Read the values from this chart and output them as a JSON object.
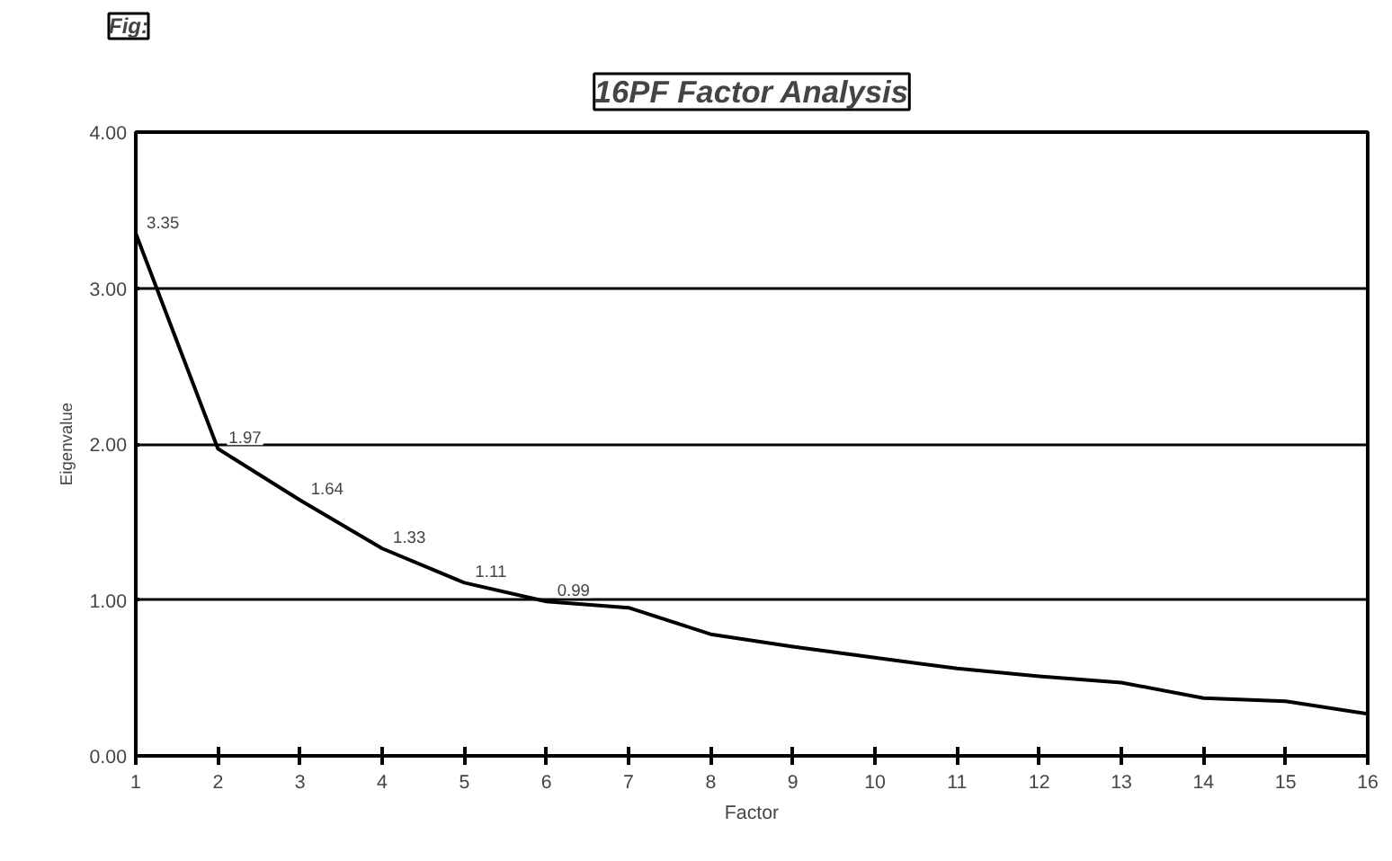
{
  "chart_data": {
    "type": "line",
    "title": "16PF Factor Analysis",
    "xlabel": "Factor",
    "ylabel": "Eigenvalue",
    "annotations": [
      "Fig:"
    ],
    "x": [
      1,
      2,
      3,
      4,
      5,
      6,
      7,
      8,
      9,
      10,
      11,
      12,
      13,
      14,
      15,
      16
    ],
    "series": [
      {
        "color": "#000000",
        "values": [
          3.35,
          1.97,
          1.64,
          1.33,
          1.11,
          0.99,
          0.95,
          0.78,
          0.7,
          0.63,
          0.56,
          0.51,
          0.47,
          0.37,
          0.35,
          0.27
        ],
        "value_labels": [
          "3.35",
          "1.97",
          "1.64",
          "1.33",
          "1.11",
          "0.99",
          null,
          null,
          null,
          null,
          null,
          null,
          null,
          null,
          null,
          null
        ]
      }
    ],
    "xlim": [
      1,
      16
    ],
    "xticks": [
      1,
      2,
      3,
      4,
      5,
      6,
      7,
      8,
      9,
      10,
      11,
      12,
      13,
      14,
      15,
      16
    ],
    "ylim": [
      0,
      4
    ],
    "yticks": [
      {
        "value": 0,
        "label": "0.00"
      },
      {
        "value": 1,
        "label": "1.00"
      },
      {
        "value": 2,
        "label": "2.00"
      },
      {
        "value": 3,
        "label": "3.00"
      },
      {
        "value": 4,
        "label": "4.00"
      }
    ],
    "grid": "y",
    "marker": "none",
    "line_style": "solid"
  }
}
